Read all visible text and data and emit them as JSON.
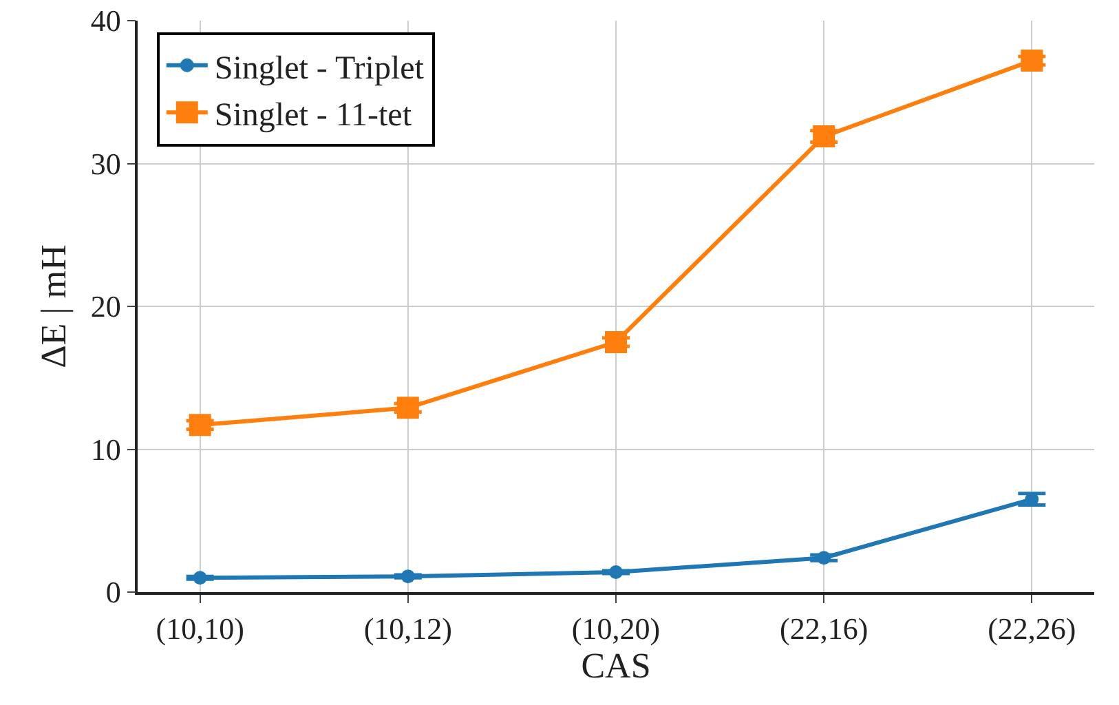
{
  "chart_data": {
    "type": "line",
    "xlabel": "CAS",
    "ylabel": "ΔE | mH",
    "categories": [
      "(10,10)",
      "(10,12)",
      "(10,20)",
      "(22,16)",
      "(22,26)"
    ],
    "series": [
      {
        "name": "Singlet - Triplet",
        "color": "#1f77b4",
        "marker": "circle",
        "values": [
          1.0,
          1.1,
          1.4,
          2.4,
          6.5
        ],
        "errors": [
          0.1,
          0.1,
          0.1,
          0.2,
          0.4
        ]
      },
      {
        "name": "Singlet - 11-tet",
        "color": "#ff7f0e",
        "marker": "square",
        "values": [
          11.7,
          12.9,
          17.5,
          31.9,
          37.2
        ],
        "errors": [
          0.3,
          0.3,
          0.3,
          0.4,
          0.3
        ]
      }
    ],
    "ylim": [
      0,
      40
    ],
    "yticks": [
      0,
      10,
      20,
      30,
      40
    ],
    "grid": true,
    "legend": "top left",
    "line_style": "solid"
  }
}
